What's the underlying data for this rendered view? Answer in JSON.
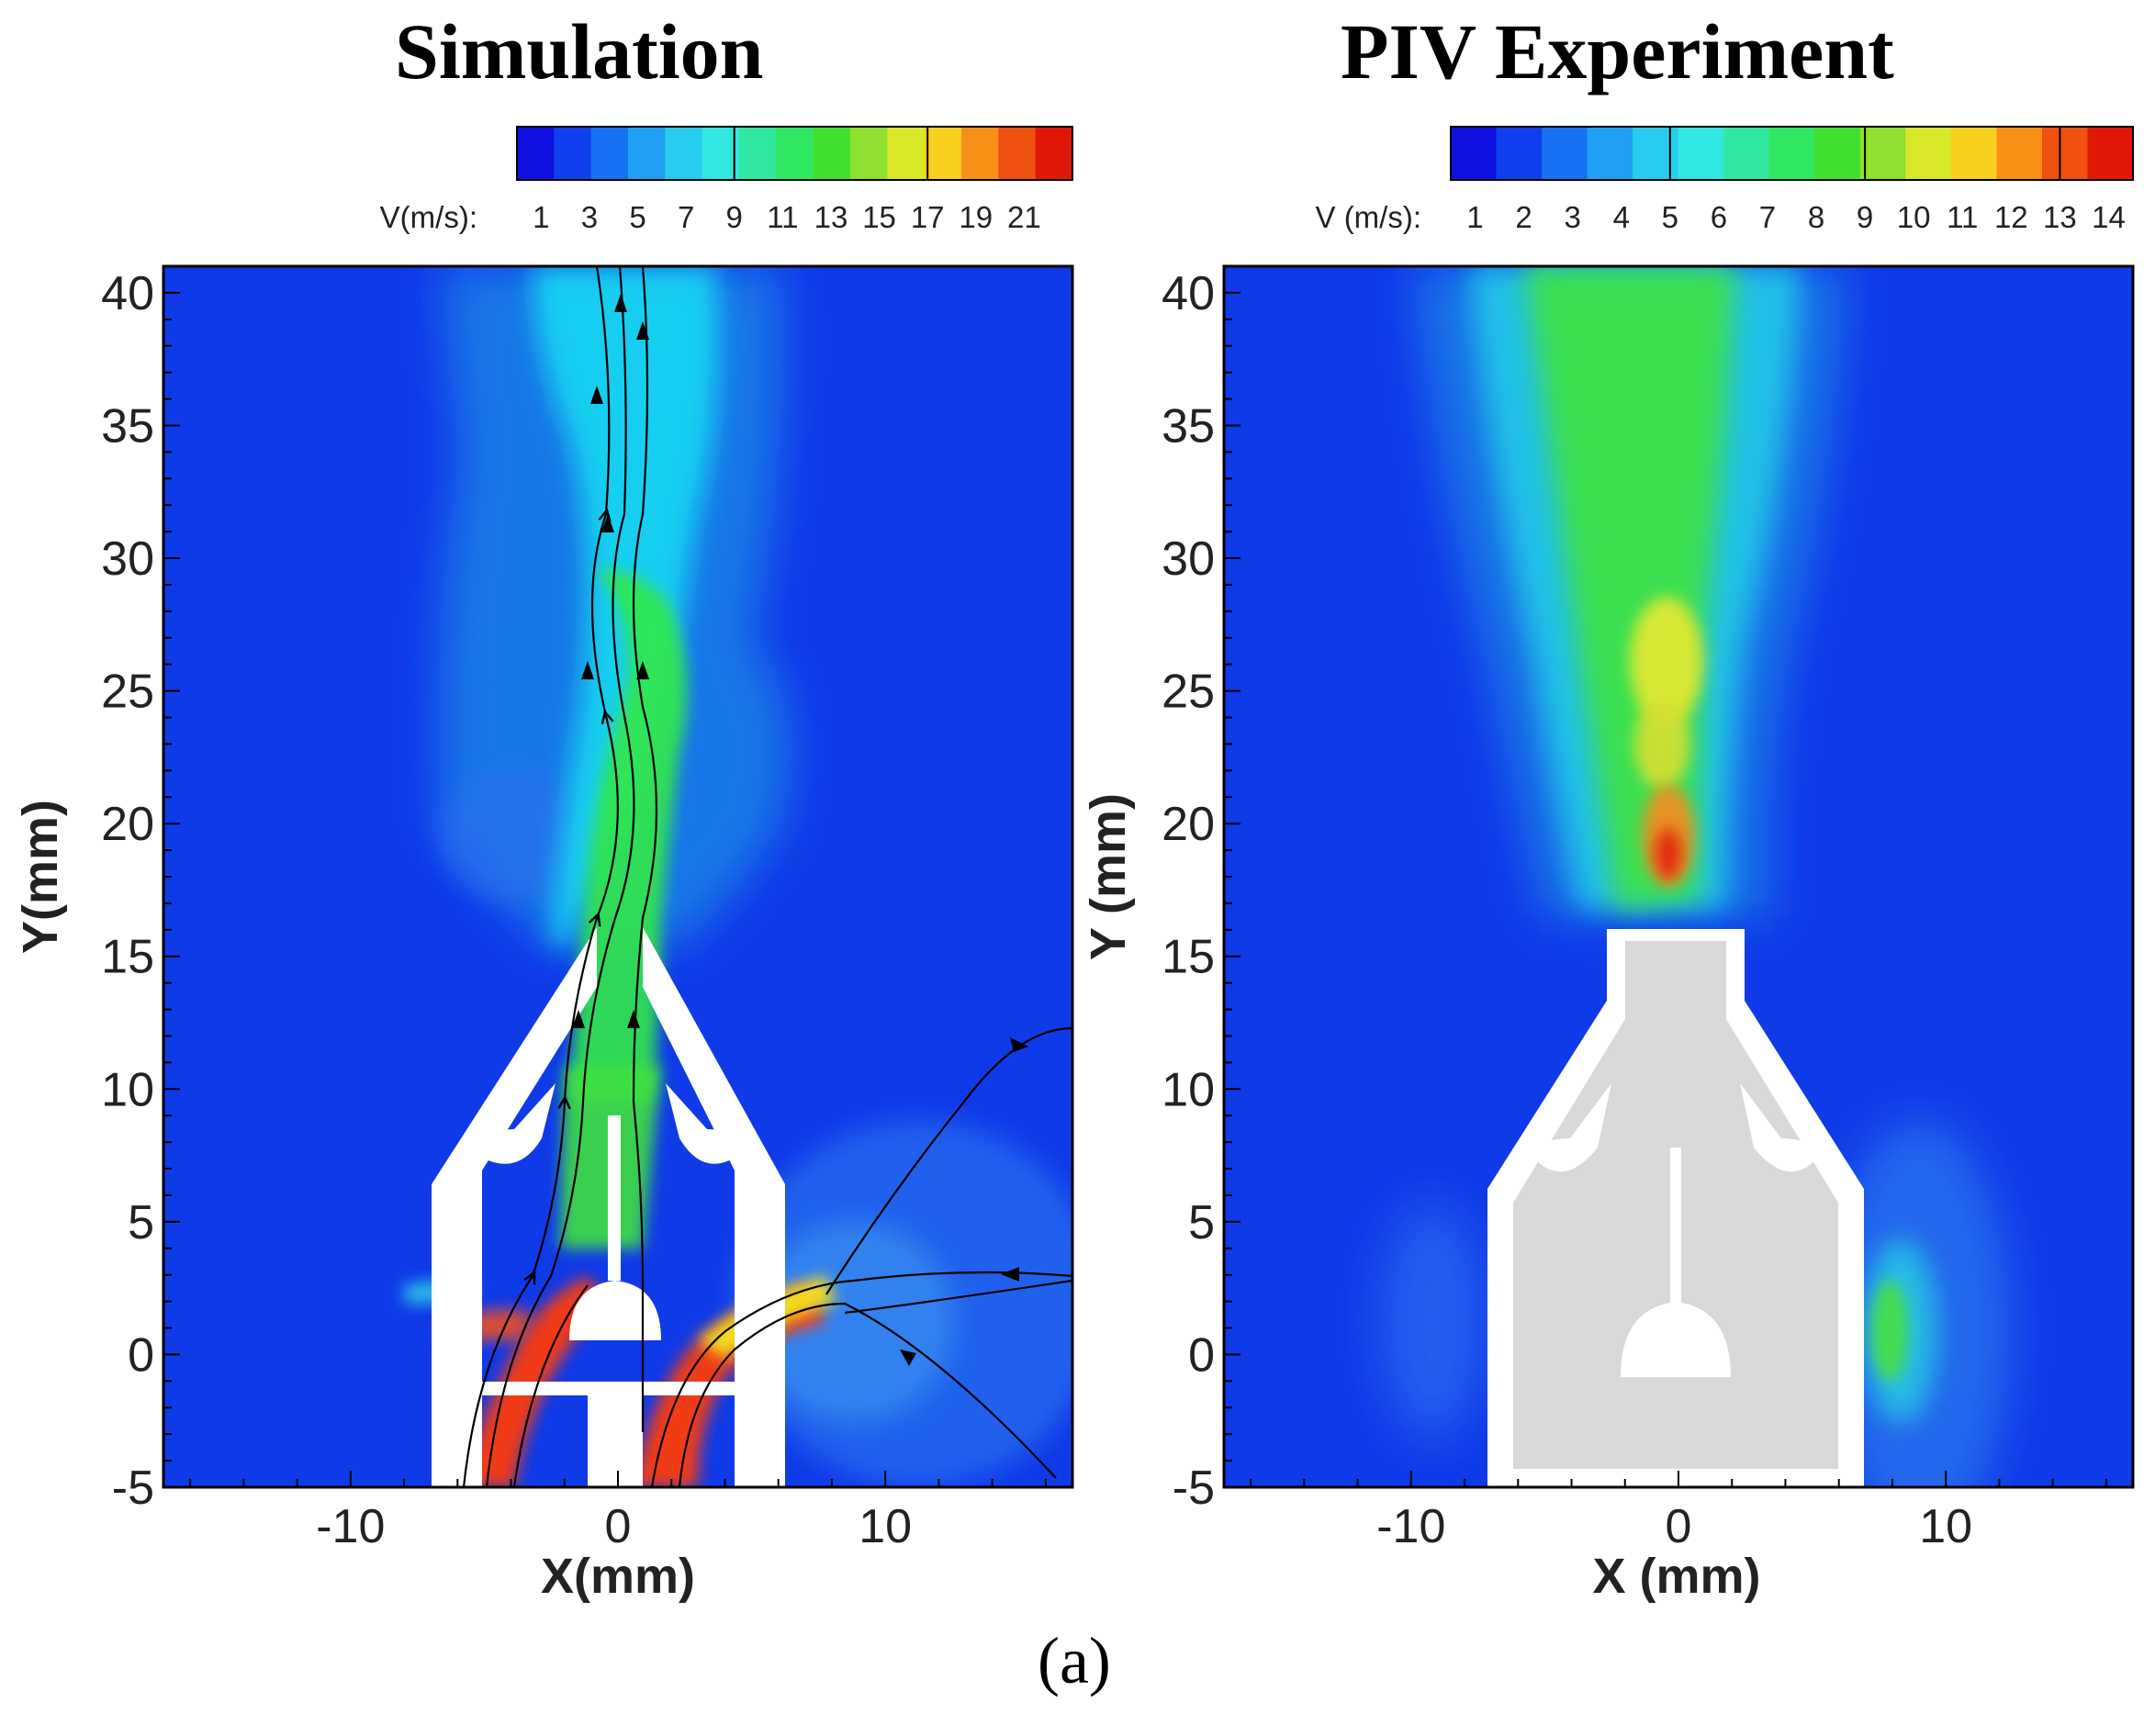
{
  "chart_data": [
    {
      "type": "heatmap",
      "title": "Simulation",
      "xlabel": "X(mm)",
      "ylabel": "Y(mm)",
      "xlim": [
        -17,
        17
      ],
      "ylim": [
        -5,
        41
      ],
      "xticks": [
        -10,
        0,
        10
      ],
      "yticks": [
        -5,
        0,
        5,
        10,
        15,
        20,
        25,
        30,
        35,
        40
      ],
      "colorbar": {
        "label": "V(m/s):",
        "range": [
          0,
          23
        ],
        "ticks": [
          1,
          3,
          5,
          7,
          9,
          11,
          13,
          15,
          17,
          19,
          21
        ]
      },
      "streamlines": true,
      "max_velocity_region": "inlet channels near Y = 0 mm",
      "jet_velocity_range": [
        11,
        15
      ]
    },
    {
      "type": "heatmap",
      "title": "PIV Experiment",
      "xlabel": "X (mm)",
      "ylabel": "Y (mm)",
      "xlim": [
        -17,
        17
      ],
      "ylim": [
        -5,
        41
      ],
      "xticks": [
        -10,
        0,
        10
      ],
      "yticks": [
        -5,
        0,
        5,
        10,
        15,
        20,
        25,
        30,
        35,
        40
      ],
      "colorbar": {
        "label": "V (m/s):",
        "range": [
          0.5,
          14.5
        ],
        "ticks": [
          1,
          2,
          3,
          4,
          5,
          6,
          7,
          8,
          9,
          10,
          11,
          12,
          13,
          14
        ]
      },
      "streamlines": false,
      "max_velocity_region": "jet core at Y = 18-27 mm",
      "jet_velocity_range": [
        7,
        14
      ]
    }
  ],
  "caption": "(a)"
}
